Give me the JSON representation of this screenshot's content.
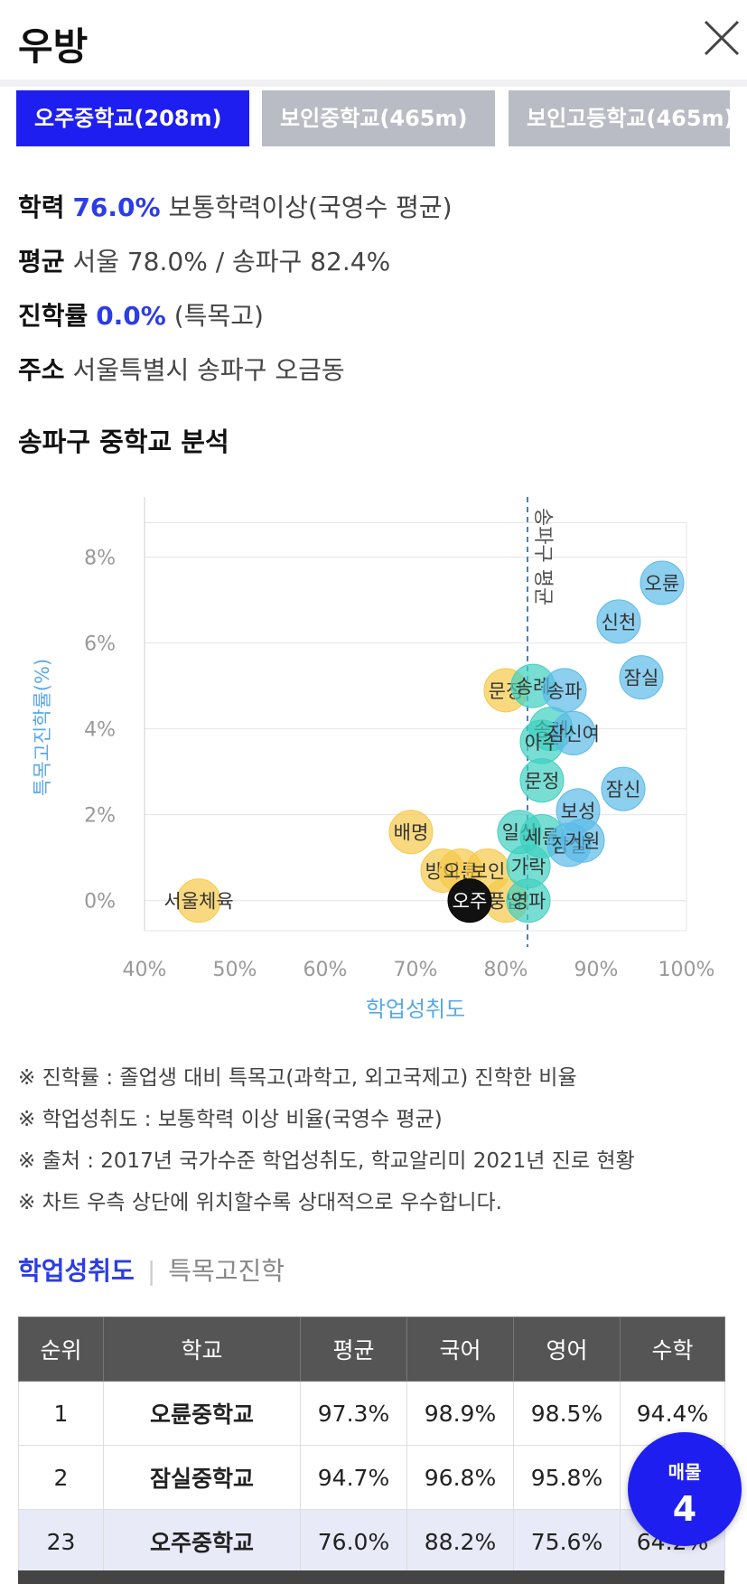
{
  "header": {
    "title": "우방"
  },
  "tabs": [
    {
      "label": "오주중학교(208m)"
    },
    {
      "label": "보인중학교(465m)"
    },
    {
      "label": "보인고등학교(465m)"
    }
  ],
  "info": {
    "achievement_label": "학력",
    "achievement_value": "76.0%",
    "achievement_desc": "보통학력이상(국영수 평균)",
    "average_label": "평균",
    "average_value": "서울 78.0% / 송파구 82.4%",
    "advance_label": "진학률",
    "advance_value": "0.0%",
    "advance_desc": "(특목고)",
    "address_label": "주소",
    "address_value": "서울특별시 송파구 오금동"
  },
  "section_title": "송파구 중학교 분석",
  "chart_data": {
    "type": "scatter",
    "xlabel": "학업성취도",
    "ylabel": "특목고진학률(%)",
    "xlim": [
      40,
      100
    ],
    "ylim": [
      -0.7,
      9.4
    ],
    "x_ticks": [
      "40%",
      "50%",
      "60%",
      "70%",
      "80%",
      "90%",
      "100%"
    ],
    "y_ticks": [
      "0%",
      "2%",
      "4%",
      "6%",
      "8%"
    ],
    "reference_line": {
      "x": 82.4,
      "label": "송파구 평균"
    },
    "grid": true,
    "colors": {
      "below": "#f7c948",
      "near": "#3ed0c0",
      "above": "#5bbbe8",
      "current": "#111111"
    },
    "points": [
      {
        "label": "서울체육",
        "x": 46,
        "y": 0.0,
        "group": "below"
      },
      {
        "label": "배명",
        "x": 69.5,
        "y": 1.6,
        "group": "below"
      },
      {
        "label": "방이",
        "x": 73,
        "y": 0.7,
        "group": "below"
      },
      {
        "label": "오륜",
        "x": 75,
        "y": 0.7,
        "group": "below"
      },
      {
        "label": "보인",
        "x": 78,
        "y": 0.7,
        "group": "below"
      },
      {
        "label": "문정",
        "x": 80,
        "y": 4.9,
        "group": "below"
      },
      {
        "label": "풍납",
        "x": 80,
        "y": 0.0,
        "group": "below"
      },
      {
        "label": "오주",
        "x": 76,
        "y": 0.0,
        "group": "current"
      },
      {
        "label": "가락",
        "x": 82.5,
        "y": 0.8,
        "group": "near"
      },
      {
        "label": "일신",
        "x": 81.5,
        "y": 1.6,
        "group": "near"
      },
      {
        "label": "세륜",
        "x": 84,
        "y": 1.5,
        "group": "near"
      },
      {
        "label": "송례",
        "x": 83,
        "y": 5.0,
        "group": "near"
      },
      {
        "label": "송례2",
        "x": 85,
        "y": 4.0,
        "group": "near"
      },
      {
        "label": "아주",
        "x": 84,
        "y": 3.7,
        "group": "near"
      },
      {
        "label": "문정2",
        "x": 84,
        "y": 2.8,
        "group": "near"
      },
      {
        "label": "영파",
        "x": 82.5,
        "y": 0.0,
        "group": "near"
      },
      {
        "label": "송파",
        "x": 86.5,
        "y": 4.9,
        "group": "above"
      },
      {
        "label": "잠신여",
        "x": 87.5,
        "y": 3.9,
        "group": "above"
      },
      {
        "label": "보성",
        "x": 88,
        "y": 2.1,
        "group": "above"
      },
      {
        "label": "잠실",
        "x": 87,
        "y": 1.3,
        "group": "above"
      },
      {
        "label": "거원",
        "x": 88.5,
        "y": 1.4,
        "group": "above"
      },
      {
        "label": "잠신",
        "x": 93,
        "y": 2.6,
        "group": "above"
      },
      {
        "label": "신천",
        "x": 92.5,
        "y": 6.5,
        "group": "above"
      },
      {
        "label": "잠실2",
        "x": 95,
        "y": 5.2,
        "group": "above"
      },
      {
        "label": "오륜2",
        "x": 97.3,
        "y": 7.4,
        "group": "above"
      }
    ]
  },
  "notes": [
    "※ 진학률 : 졸업생 대비 특목고(과학고, 외고국제고) 진학한 비율",
    "※ 학업성취도 : 보통학력 이상 비율(국영수 평균)",
    "※ 출처 : 2017년 국가수준 학업성취도, 학교알리미 2021년 진로 현황",
    "※ 차트 우측 상단에 위치할수록 상대적으로 우수합니다."
  ],
  "subtabs": {
    "active": "학업성취도",
    "inactive": "특목고진학"
  },
  "table": {
    "headers": [
      "순위",
      "학교",
      "평균",
      "국어",
      "영어",
      "수학"
    ],
    "rows": [
      [
        "1",
        "오륜중학교",
        "97.3%",
        "98.9%",
        "98.5%",
        "94.4%"
      ],
      [
        "2",
        "잠실중학교",
        "94.7%",
        "96.8%",
        "95.8%",
        ""
      ],
      [
        "23",
        "오주중학교",
        "76.0%",
        "88.2%",
        "75.6%",
        "64.2%"
      ]
    ]
  },
  "fab": {
    "label": "매물",
    "count": "4"
  }
}
